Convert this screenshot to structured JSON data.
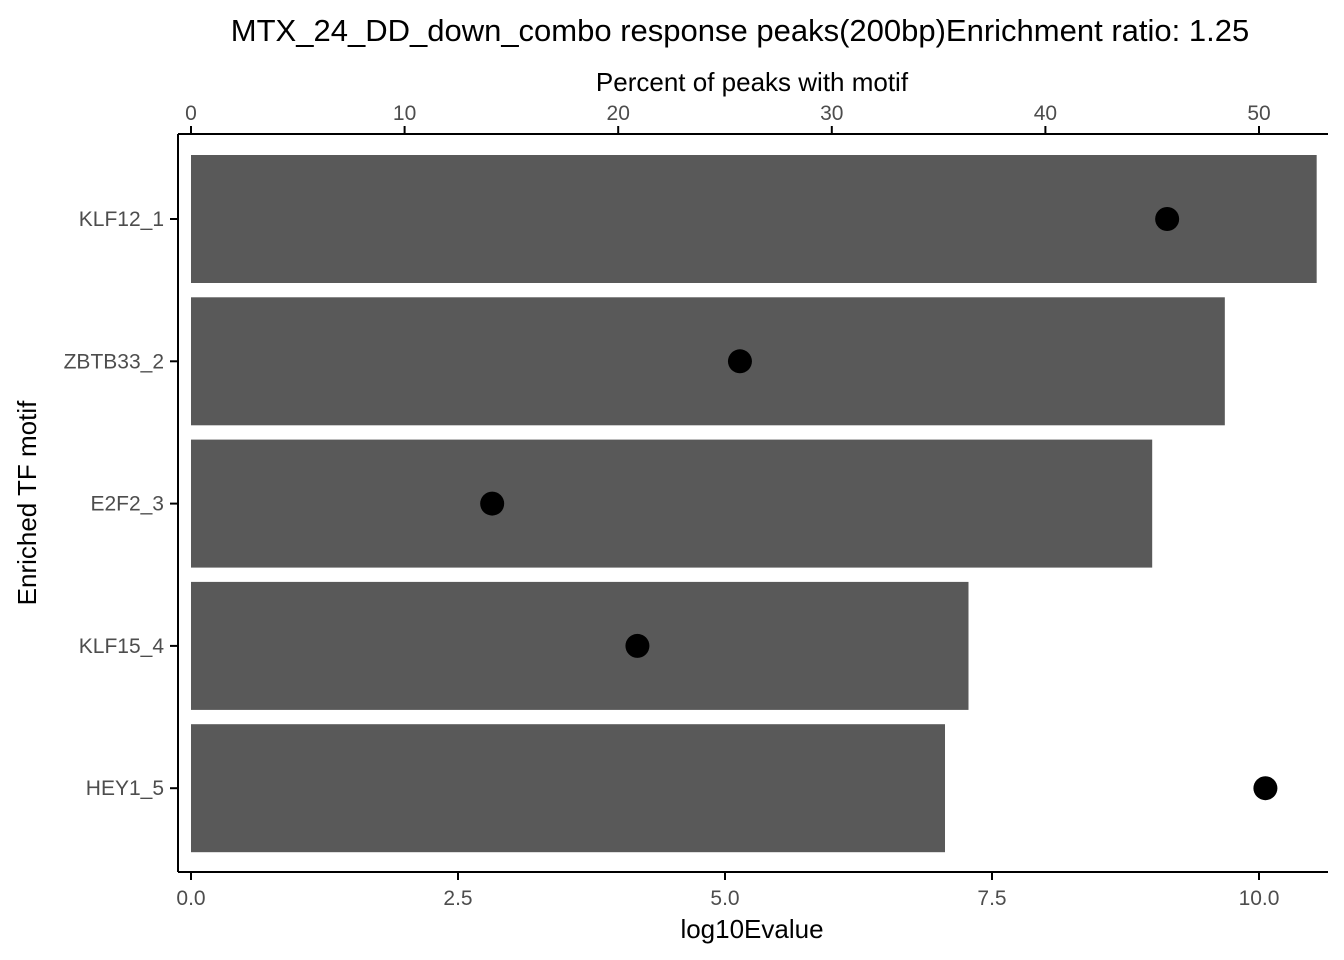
{
  "chart_data": {
    "type": "bar",
    "title": "MTX_24_DD_down_combo response peaks(200bp)Enrichment ratio: 1.25",
    "xlabel": "log10Evalue",
    "x2label": "Percent of peaks with motif",
    "ylabel": "Enriched TF motif",
    "orientation": "horizontal",
    "categories": [
      "KLF12_1",
      "ZBTB33_2",
      "E2F2_3",
      "KLF15_4",
      "HEY1_5"
    ],
    "series": [
      {
        "values": [
          10.54,
          9.68,
          9.0,
          7.28,
          7.06
        ]
      },
      {
        "values": [
          45.7,
          25.7,
          14.1,
          20.9,
          50.3
        ]
      }
    ],
    "xlim": [
      0,
      10.6
    ],
    "x2lim": [
      0,
      53.0
    ],
    "x_ticks": [
      "0.0",
      "2.5",
      "5.0",
      "7.5",
      "10.0"
    ],
    "x_tick_values": [
      0,
      2.5,
      5,
      7.5,
      10
    ],
    "x2_ticks": [
      "0",
      "10",
      "20",
      "30",
      "40",
      "50"
    ],
    "x2_tick_values": [
      0,
      10,
      20,
      30,
      40,
      50
    ],
    "bar_color": "#595959",
    "point_color": "#000000",
    "grid": false,
    "legend": "none"
  }
}
